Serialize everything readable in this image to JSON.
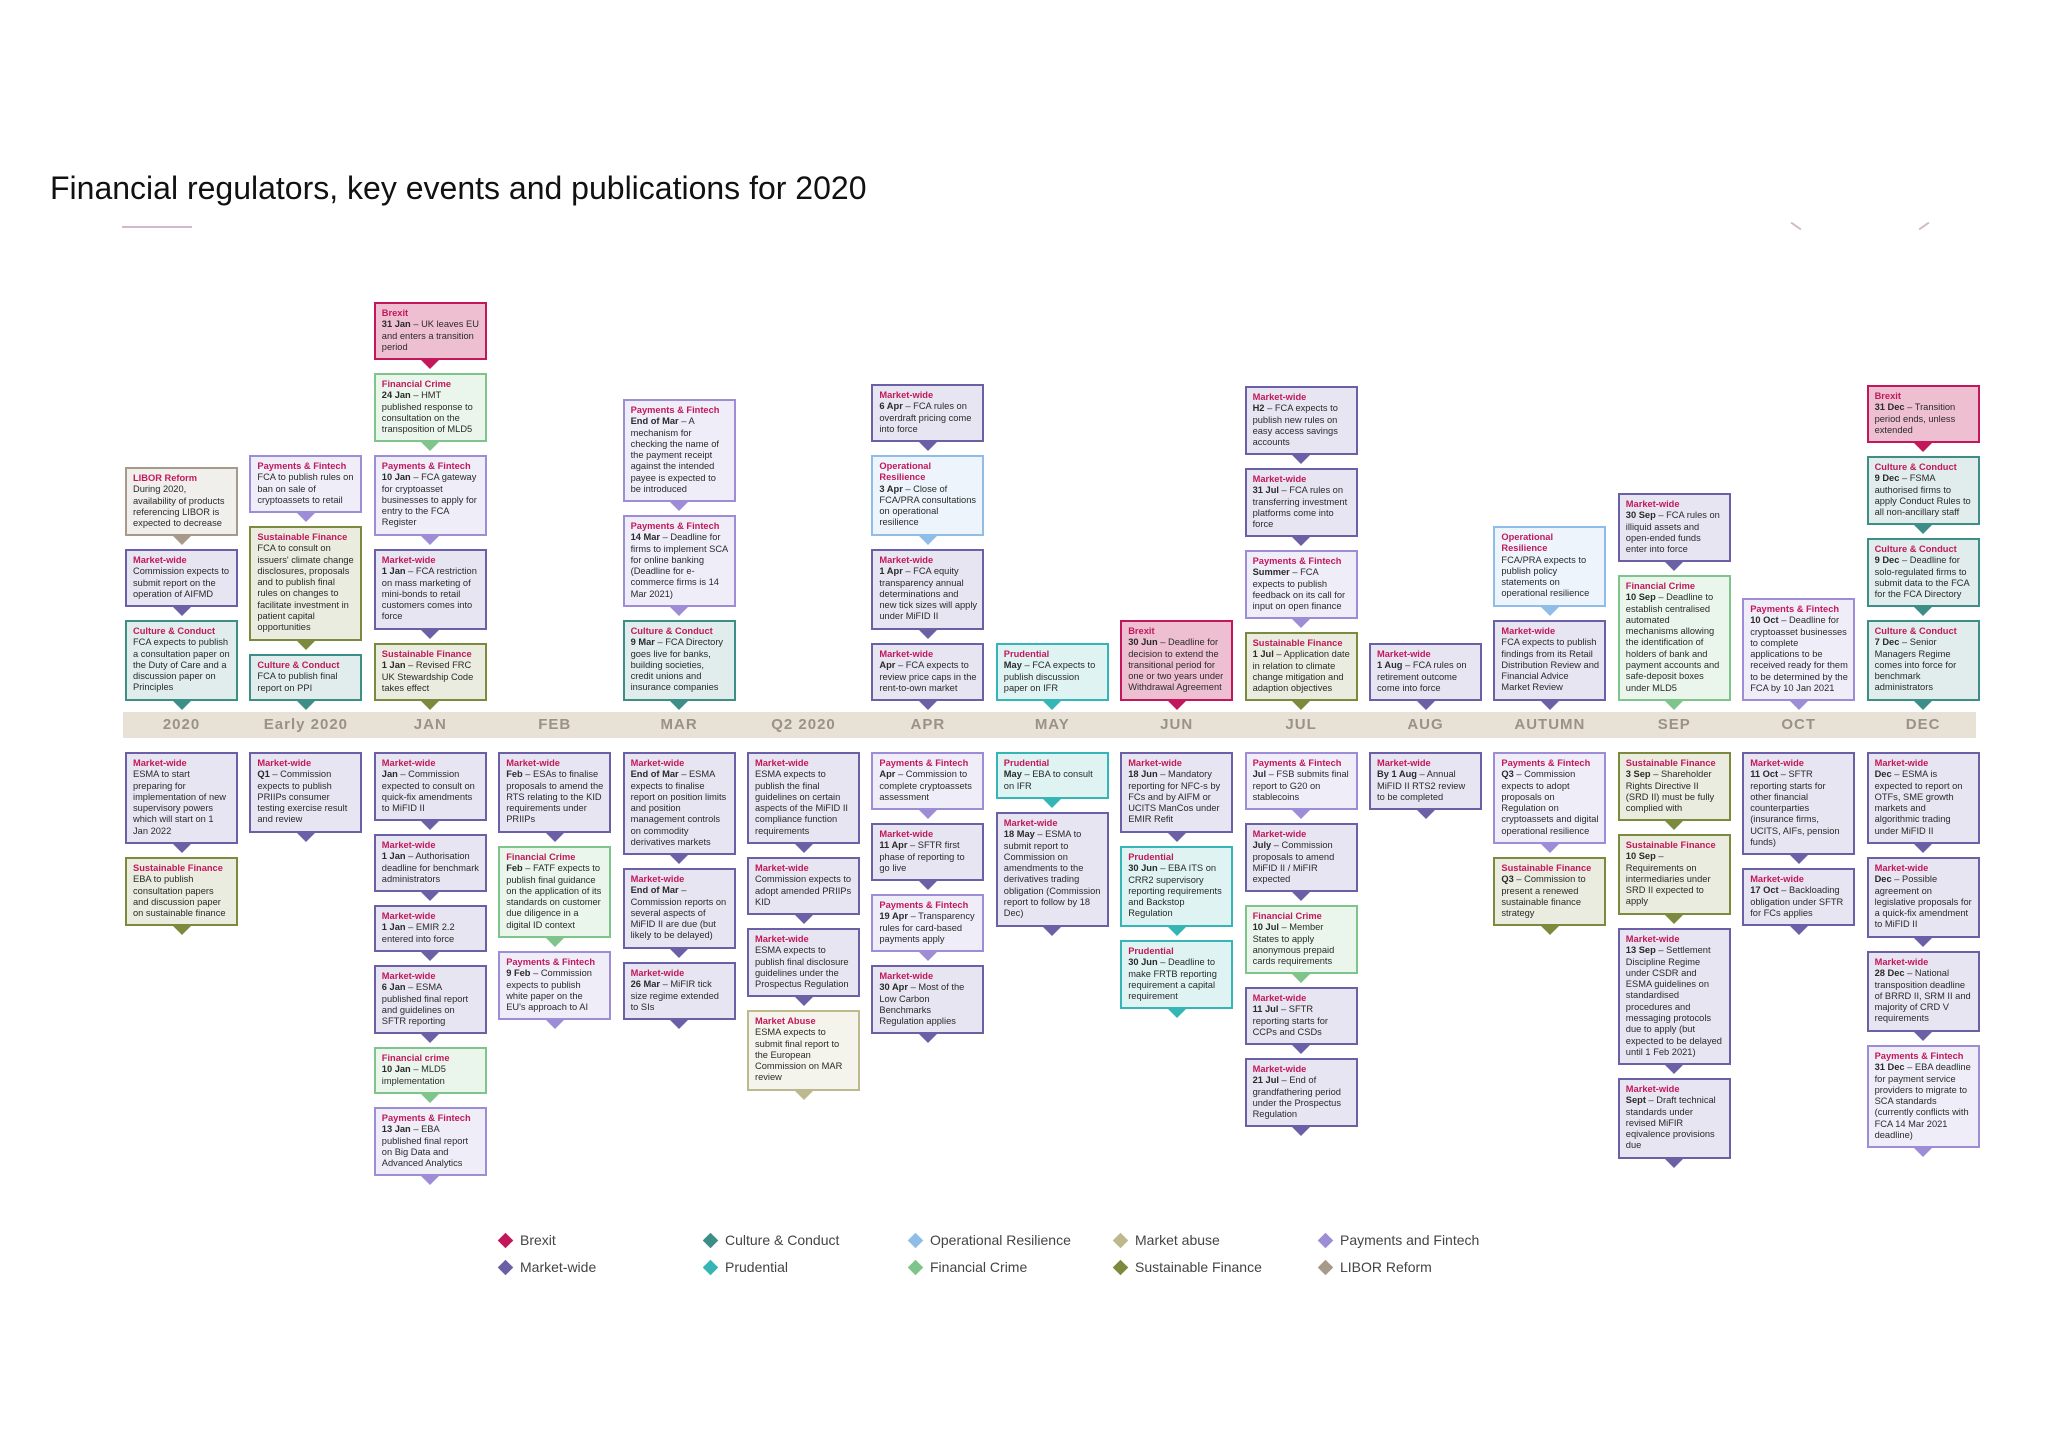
{
  "title": "Financial regulators, key events and publications for 2020",
  "colors": {
    "Brexit": "#c2185b",
    "Market-wide": "#6b5fa6",
    "Culture & Conduct": "#3e8e88",
    "Prudential": "#35b5b5",
    "Operational Resilience": "#8fbde8",
    "Financial Crime": "#7fc48a",
    "Market abuse": "#bdb98e",
    "Sustainable Finance": "#7c8a3e",
    "Payments and Fintech": "#9e8cd6",
    "LIBOR Reform": "#a89a8a"
  },
  "timeline": [
    "2020",
    "Early 2020",
    "JAN",
    "FEB",
    "MAR",
    "Q2 2020",
    "APR",
    "MAY",
    "JUN",
    "JUL",
    "AUG",
    "AUTUMN",
    "SEP",
    "OCT",
    "DEC"
  ],
  "cards_above": [
    {
      "col": 0,
      "cat": "LIBOR Reform",
      "text": "During 2020, availability of products referencing LIBOR is expected to decrease"
    },
    {
      "col": 0,
      "cat": "Market-wide",
      "text": "Commission expects to submit report on the operation of AIFMD"
    },
    {
      "col": 0,
      "cat": "Culture & Conduct",
      "text": "FCA expects to publish a consultation paper on the Duty of Care and a discussion paper on Principles"
    },
    {
      "col": 1,
      "cat": "Payments & Fintech",
      "text": "FCA to publish rules on ban on sale of cryptoassets to retail"
    },
    {
      "col": 1,
      "cat": "Sustainable Finance",
      "text": "FCA to consult on issuers' climate change disclosures, proposals and to publish final rules on changes to facilitate investment in patient capital opportunities"
    },
    {
      "col": 1,
      "cat": "Culture & Conduct",
      "text": "FCA to publish final report on PPI"
    },
    {
      "col": 2,
      "cat": "Brexit",
      "date": "31 Jan",
      "text": " – UK leaves EU and enters a transition period"
    },
    {
      "col": 2,
      "cat": "Financial Crime",
      "date": "24 Jan",
      "text": " – HMT published response to consultation on the transposition of MLD5"
    },
    {
      "col": 2,
      "cat": "Payments & Fintech",
      "date": "10 Jan",
      "text": " – FCA gateway for cryptoasset businesses to apply for entry to the FCA Register"
    },
    {
      "col": 2,
      "cat": "Market-wide",
      "date": "1 Jan",
      "text": " – FCA restriction on mass marketing of mini-bonds to retail customers comes into force"
    },
    {
      "col": 2,
      "cat": "Sustainable Finance",
      "date": "1 Jan",
      "text": " – Revised FRC UK Stewardship Code takes effect"
    },
    {
      "col": 4,
      "cat": "Payments & Fintech",
      "date": "End of Mar",
      "text": " – A mechanism for checking the name of the payment receipt against the intended payee is expected to be introduced"
    },
    {
      "col": 4,
      "cat": "Payments & Fintech",
      "date": "14 Mar",
      "text": " – Deadline for firms to implement SCA for online banking (Deadline for e-commerce firms is 14 Mar 2021)"
    },
    {
      "col": 4,
      "cat": "Culture & Conduct",
      "date": "9 Mar",
      "text": " – FCA Directory goes live for banks, building societies, credit unions and insurance companies"
    },
    {
      "col": 6,
      "cat": "Market-wide",
      "date": "6 Apr",
      "text": " – FCA rules on overdraft pricing come into force"
    },
    {
      "col": 6,
      "cat": "Operational Resilience",
      "date": "3 Apr",
      "text": " – Close of FCA/PRA consultations on operational resilience"
    },
    {
      "col": 6,
      "cat": "Market-wide",
      "date": "1 Apr",
      "text": " – FCA equity transparency annual determinations and new tick sizes will apply under MiFID II"
    },
    {
      "col": 6,
      "cat": "Market-wide",
      "date": "Apr",
      "text": " – FCA expects to review price caps in the rent-to-own market"
    },
    {
      "col": 7,
      "cat": "Prudential",
      "date": "May",
      "text": " – FCA expects to publish discussion paper on IFR"
    },
    {
      "col": 8,
      "cat": "Brexit",
      "date": "30 Jun",
      "text": " – Deadline for decision to extend the transitional period for one or two years under Withdrawal Agreement"
    },
    {
      "col": 9,
      "cat": "Market-wide",
      "date": "H2",
      "text": " – FCA expects to publish new rules on easy access savings accounts"
    },
    {
      "col": 9,
      "cat": "Market-wide",
      "date": "31 Jul",
      "text": " – FCA rules on transferring investment platforms come into force"
    },
    {
      "col": 9,
      "cat": "Payments & Fintech",
      "date": "Summer",
      "text": " – FCA expects to publish feedback on its call for input on open finance"
    },
    {
      "col": 9,
      "cat": "Sustainable Finance",
      "date": "1 Jul",
      "text": " – Application date in relation to climate change mitigation and adaption objectives"
    },
    {
      "col": 10,
      "cat": "Market-wide",
      "date": "1 Aug",
      "text": " – FCA rules on retirement outcome come into force"
    },
    {
      "col": 11,
      "cat": "Operational Resilience",
      "text": "FCA/PRA expects to publish policy statements on operational resilience"
    },
    {
      "col": 11,
      "cat": "Market-wide",
      "text": "FCA expects to publish findings from its Retail Distribution Review and Financial Advice Market Review"
    },
    {
      "col": 12,
      "cat": "Market-wide",
      "date": "30 Sep",
      "text": " – FCA rules on illiquid assets and open-ended funds enter into force"
    },
    {
      "col": 12,
      "cat": "Financial Crime",
      "date": "10 Sep",
      "text": " – Deadline to establish centralised automated mechanisms allowing the identification of holders of bank and payment accounts and safe-deposit boxes under MLD5"
    },
    {
      "col": 13,
      "cat": "Payments & Fintech",
      "date": "10 Oct",
      "text": " – Deadline for cryptoasset businesses to complete applications to be received ready for them to be determined by the FCA by 10 Jan 2021"
    },
    {
      "col": 14,
      "cat": "Brexit",
      "date": "31 Dec",
      "text": " – Transition period ends, unless extended"
    },
    {
      "col": 14,
      "cat": "Culture & Conduct",
      "date": "9 Dec",
      "text": " – FSMA authorised firms to apply Conduct Rules to all non-ancillary staff"
    },
    {
      "col": 14,
      "cat": "Culture & Conduct",
      "date": "9 Dec",
      "text": " – Deadline for solo-regulated firms to submit data to the FCA for the FCA Directory"
    },
    {
      "col": 14,
      "cat": "Culture & Conduct",
      "date": "7 Dec",
      "text": " – Senior Managers Regime comes into force for benchmark administrators"
    }
  ],
  "cards_below": [
    {
      "col": 0,
      "cat": "Market-wide",
      "text": "ESMA to start preparing for implementation of new supervisory powers which will start on 1 Jan 2022"
    },
    {
      "col": 0,
      "cat": "Sustainable Finance",
      "text": "EBA to publish consultation papers and discussion paper on sustainable finance"
    },
    {
      "col": 1,
      "cat": "Market-wide",
      "date": "Q1",
      "text": " – Commission expects to publish PRIIPs consumer testing exercise result and review"
    },
    {
      "col": 2,
      "cat": "Market-wide",
      "date": "Jan",
      "text": " – Commission expected to consult on quick-fix amendments to MiFID II"
    },
    {
      "col": 2,
      "cat": "Market-wide",
      "date": "1 Jan",
      "text": " – Authorisation deadline for benchmark administrators"
    },
    {
      "col": 2,
      "cat": "Market-wide",
      "date": "1 Jan",
      "text": " – EMIR 2.2 entered into force"
    },
    {
      "col": 2,
      "cat": "Market-wide",
      "date": "6 Jan",
      "text": " – ESMA published final report and guidelines on SFTR reporting"
    },
    {
      "col": 2,
      "cat": "Financial crime",
      "date": "10 Jan",
      "text": " – MLD5 implementation"
    },
    {
      "col": 2,
      "cat": "Payments & Fintech",
      "date": "13 Jan",
      "text": " – EBA published final report on Big Data and Advanced Analytics"
    },
    {
      "col": 3,
      "cat": "Market-wide",
      "date": "Feb",
      "text": " – ESAs to finalise proposals to amend the RTS relating to the KID requirements under PRIIPs"
    },
    {
      "col": 3,
      "cat": "Financial Crime",
      "date": "Feb",
      "text": " – FATF expects to publish final guidance on the application of its standards on customer due diligence in a digital ID context"
    },
    {
      "col": 3,
      "cat": "Payments & Fintech",
      "date": "9 Feb",
      "text": " – Commission expects to publish white paper on the EU's approach to AI"
    },
    {
      "col": 4,
      "cat": "Market-wide",
      "date": "End of Mar",
      "text": " – ESMA expects to finalise report on position limits and position management controls on commodity derivatives markets"
    },
    {
      "col": 4,
      "cat": "Market-wide",
      "date": "End of Mar",
      "text": " – Commission reports on several aspects of MiFID II are due (but likely to be delayed)"
    },
    {
      "col": 4,
      "cat": "Market-wide",
      "date": "26 Mar",
      "text": " – MiFIR tick size regime extended to SIs"
    },
    {
      "col": 5,
      "cat": "Market-wide",
      "text": "ESMA expects to publish the final guidelines on certain aspects of the MiFID II compliance function requirements"
    },
    {
      "col": 5,
      "cat": "Market-wide",
      "text": "Commission expects to adopt amended PRIIPs KID"
    },
    {
      "col": 5,
      "cat": "Market-wide",
      "text": "ESMA expects to publish final disclosure guidelines under the Prospectus Regulation"
    },
    {
      "col": 5,
      "cat": "Market Abuse",
      "text": "ESMA expects to submit final report to the European Commission on MAR review"
    },
    {
      "col": 6,
      "cat": "Payments & Fintech",
      "date": "Apr",
      "text": " – Commission to complete cryptoassets assessment"
    },
    {
      "col": 6,
      "cat": "Market-wide",
      "date": "11 Apr",
      "text": " – SFTR first phase of reporting to go live"
    },
    {
      "col": 6,
      "cat": "Payments & Fintech",
      "date": "19 Apr",
      "text": " – Transparency rules for card-based payments apply"
    },
    {
      "col": 6,
      "cat": "Market-wide",
      "date": "30 Apr",
      "text": " – Most of the Low Carbon Benchmarks Regulation applies"
    },
    {
      "col": 7,
      "cat": "Prudential",
      "date": "May",
      "text": " – EBA to consult on IFR"
    },
    {
      "col": 7,
      "cat": "Market-wide",
      "date": "18 May",
      "text": " – ESMA to submit report to Commission on amendments to the derivatives trading obligation (Commission report to follow by 18 Dec)"
    },
    {
      "col": 8,
      "cat": "Market-wide",
      "date": "18 Jun",
      "text": " – Mandatory reporting for NFC-s by FCs and by AIFM or UCITS ManCos under EMIR Refit"
    },
    {
      "col": 8,
      "cat": "Prudential",
      "date": "30 Jun",
      "text": " – EBA ITS on CRR2 supervisory reporting requirements and Backstop Regulation"
    },
    {
      "col": 8,
      "cat": "Prudential",
      "date": "30 Jun",
      "text": " – Deadline to make FRTB reporting requirement a capital requirement"
    },
    {
      "col": 9,
      "cat": "Payments & Fintech",
      "date": "Jul",
      "text": " – FSB submits final report to G20 on stablecoins"
    },
    {
      "col": 9,
      "cat": "Market-wide",
      "date": "July",
      "text": " – Commission proposals to amend MiFID II / MiFIR expected"
    },
    {
      "col": 9,
      "cat": "Financial Crime",
      "date": "10 Jul",
      "text": " – Member States to apply anonymous prepaid cards requirements"
    },
    {
      "col": 9,
      "cat": "Market-wide",
      "date": "11 Jul",
      "text": " – SFTR reporting starts for CCPs and CSDs"
    },
    {
      "col": 9,
      "cat": "Market-wide",
      "date": "21 Jul",
      "text": " – End of grandfathering period under the Prospectus Regulation"
    },
    {
      "col": 10,
      "cat": "Market-wide",
      "date": "By 1 Aug",
      "text": " – Annual MiFID II RTS2 review to be completed"
    },
    {
      "col": 11,
      "cat": "Payments & Fintech",
      "date": "Q3",
      "text": " – Commission expects to adopt proposals on Regulation on cryptoassets and digital operational resilience"
    },
    {
      "col": 11,
      "cat": "Sustainable Finance",
      "date": "Q3",
      "text": " – Commission to present a renewed sustainable finance strategy"
    },
    {
      "col": 12,
      "cat": "Sustainable Finance",
      "date": "3 Sep",
      "text": " – Shareholder Rights Directive II (SRD II) must be fully complied with"
    },
    {
      "col": 12,
      "cat": "Sustainable Finance",
      "date": "10 Sep",
      "text": " – Requirements on intermediaries under SRD II expected to apply"
    },
    {
      "col": 12,
      "cat": "Market-wide",
      "date": "13 Sep",
      "text": " – Settlement Discipline Regime under CSDR and ESMA guidelines on standardised procedures and messaging protocols due to apply (but expected to be delayed until 1 Feb 2021)"
    },
    {
      "col": 12,
      "cat": "Market-wide",
      "date": "Sept",
      "text": " – Draft technical standards under revised MiFIR eqivalence provisions due"
    },
    {
      "col": 13,
      "cat": "Market-wide",
      "date": "11 Oct",
      "text": " – SFTR reporting starts for other financial counterparties (insurance firms, UCITS, AIFs, pension funds)"
    },
    {
      "col": 13,
      "cat": "Market-wide",
      "date": "17 Oct",
      "text": " – Backloading obligation under SFTR for FCs applies"
    },
    {
      "col": 14,
      "cat": "Market-wide",
      "date": "Dec",
      "text": " – ESMA is expected to report on OTFs, SME growth markets and algorithmic trading under MiFID II"
    },
    {
      "col": 14,
      "cat": "Market-wide",
      "date": "Dec",
      "text": " – Possible agreement on legislative proposals for a quick-fix amendment to MiFID II"
    },
    {
      "col": 14,
      "cat": "Market-wide",
      "date": "28 Dec",
      "text": " – National transposition deadline of BRRD II, SRM II and majority of CRD V requirements"
    },
    {
      "col": 14,
      "cat": "Payments & Fintech",
      "date": "31 Dec",
      "text": " – EBA deadline for payment service providers to migrate to SCA standards (currently conflicts with FCA 14 Mar 2021 deadline)"
    }
  ],
  "legend": [
    {
      "label": "Brexit",
      "key": "Brexit"
    },
    {
      "label": "Market-wide",
      "key": "Market-wide"
    },
    {
      "label": "Culture & Conduct",
      "key": "Culture & Conduct"
    },
    {
      "label": "Prudential",
      "key": "Prudential"
    },
    {
      "label": "Operational Resilience",
      "key": "Operational Resilience"
    },
    {
      "label": "Financial Crime",
      "key": "Financial Crime"
    },
    {
      "label": "Market abuse",
      "key": "Market abuse"
    },
    {
      "label": "Sustainable Finance",
      "key": "Sustainable Finance"
    },
    {
      "label": "Payments and Fintech",
      "key": "Payments and Fintech"
    },
    {
      "label": "LIBOR Reform",
      "key": "LIBOR Reform"
    }
  ]
}
